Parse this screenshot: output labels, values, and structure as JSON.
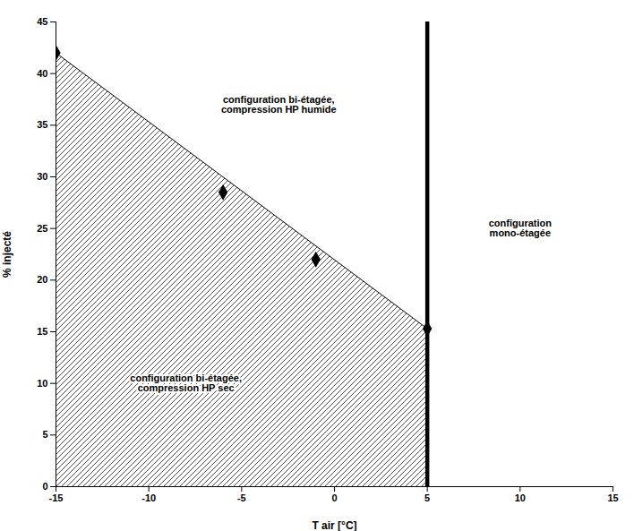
{
  "chart_data": {
    "type": "line",
    "xlabel": "T air [°C]",
    "ylabel": "% injecté",
    "xlim": [
      -15,
      15
    ],
    "ylim": [
      0,
      45
    ],
    "xticks": [
      -15,
      -10,
      -5,
      0,
      5,
      10,
      15
    ],
    "yticks": [
      0,
      5,
      10,
      15,
      20,
      25,
      30,
      35,
      40,
      45
    ],
    "grid": false,
    "x": [
      -15,
      5
    ],
    "values": [
      42,
      15.3
    ],
    "color": "#000000",
    "line_style": "solid",
    "points": {
      "x": [
        -15,
        -6,
        -1,
        5
      ],
      "values": [
        42,
        28.5,
        22,
        15.3
      ],
      "marker": "diamond",
      "color": "#000000"
    },
    "vertical_line": {
      "x": 5,
      "color": "#000000"
    },
    "annotations": [
      {
        "text": "configuration bi-étagée,\ncompression HP humide",
        "x": -3,
        "y": 37
      },
      {
        "text": "configuration bi-étagée,\ncompression HP sec",
        "x": -8,
        "y": 10
      },
      {
        "text": "configuration\nmono-étagée",
        "x": 10,
        "y": 25
      }
    ]
  }
}
